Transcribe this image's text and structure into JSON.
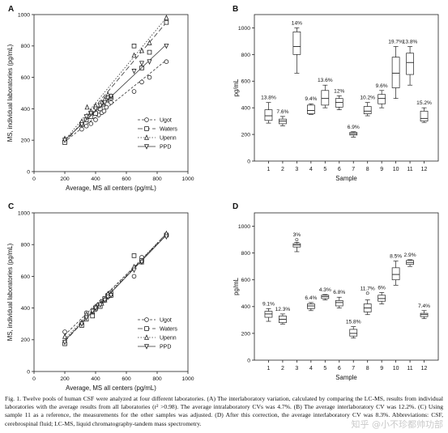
{
  "figure": {
    "caption": "Fig. 1.  Twelve pools of human CSF were analyzed at four different laboratories. (A) The interlaboratory variation, calculated by comparing the LC-MS, results from individual laboratories with the average results from all laboratories (r² >0.98). The average intralaboratory CVs was 4.7%. (B) The average interlaboratory CV was 12.2%. (C) Using sample 11 as a reference, the measurements for the other samples was adjusted. (D) After this correction, the average interlaboratory CV was 8.3%. Abbreviations: CSF, cerebrospinal fluid; LC-MS, liquid chromatography-tandem mass spectrometry.",
    "watermark": "知乎 @小不珍都帅功部"
  },
  "chart_data": [
    {
      "panel": "A",
      "type": "scatter",
      "xlabel": "Average, MS all centers (pg/mL)",
      "ylabel": "MS, individual laboratories (pg/mL)",
      "xlim": [
        0,
        1000
      ],
      "ylim": [
        0,
        1000
      ],
      "xticks": [
        "0",
        "200",
        "400",
        "600",
        "800",
        "1000"
      ],
      "yticks": [
        "0",
        "200",
        "400",
        "600",
        "800",
        "1000"
      ],
      "legend_position": "lower-right",
      "series": [
        {
          "name": "Ugot",
          "marker": "circle",
          "dash": "3,2",
          "points": [
            [
              200,
              195
            ],
            [
              310,
              270
            ],
            [
              340,
              290
            ],
            [
              370,
              305
            ],
            [
              400,
              330
            ],
            [
              420,
              360
            ],
            [
              440,
              375
            ],
            [
              455,
              385
            ],
            [
              470,
              410
            ],
            [
              500,
              440
            ],
            [
              650,
              510
            ],
            [
              700,
              570
            ],
            [
              750,
              600
            ],
            [
              860,
              700
            ]
          ],
          "fit": [
            [
              200,
              190
            ],
            [
              860,
              710
            ]
          ]
        },
        {
          "name": "Waters",
          "marker": "square",
          "dash": "6,3",
          "points": [
            [
              200,
              185
            ],
            [
              310,
              300
            ],
            [
              340,
              330
            ],
            [
              370,
              350
            ],
            [
              400,
              370
            ],
            [
              430,
              400
            ],
            [
              450,
              430
            ],
            [
              470,
              455
            ],
            [
              500,
              470
            ],
            [
              650,
              800
            ],
            [
              700,
              660
            ],
            [
              750,
              760
            ],
            [
              860,
              950
            ]
          ],
          "fit": [
            [
              200,
              185
            ],
            [
              860,
              950
            ]
          ]
        },
        {
          "name": "Upenn",
          "marker": "triangle-up",
          "dash": "1.5,2",
          "points": [
            [
              200,
              210
            ],
            [
              310,
              320
            ],
            [
              345,
              410
            ],
            [
              370,
              385
            ],
            [
              400,
              420
            ],
            [
              440,
              440
            ],
            [
              460,
              460
            ],
            [
              480,
              490
            ],
            [
              500,
              480
            ],
            [
              650,
              740
            ],
            [
              700,
              770
            ],
            [
              750,
              820
            ],
            [
              860,
              980
            ]
          ],
          "fit": [
            [
              200,
              200
            ],
            [
              860,
              980
            ]
          ]
        },
        {
          "name": "PPD",
          "marker": "triangle-down",
          "dash": "",
          "points": [
            [
              200,
              200
            ],
            [
              310,
              300
            ],
            [
              340,
              350
            ],
            [
              370,
              370
            ],
            [
              400,
              400
            ],
            [
              430,
              420
            ],
            [
              460,
              440
            ],
            [
              480,
              470
            ],
            [
              500,
              480
            ],
            [
              650,
              640
            ],
            [
              700,
              690
            ],
            [
              750,
              700
            ],
            [
              860,
              800
            ]
          ],
          "fit": [
            [
              200,
              200
            ],
            [
              860,
              810
            ]
          ]
        }
      ]
    },
    {
      "panel": "B",
      "type": "box",
      "xlabel": "Sample",
      "ylabel": "pg/mL",
      "ylim": [
        0,
        1100
      ],
      "yticks": [
        "0",
        "200",
        "400",
        "600",
        "800",
        "1000"
      ],
      "categories": [
        "1",
        "2",
        "3",
        "4",
        "5",
        "6",
        "7",
        "8",
        "9",
        "10",
        "11",
        "12"
      ],
      "boxes": [
        {
          "min": 285,
          "q1": 305,
          "med": 340,
          "q3": 385,
          "max": 440,
          "label": "13.8%"
        },
        {
          "min": 265,
          "q1": 280,
          "med": 300,
          "q3": 315,
          "max": 335,
          "label": "7.6%"
        },
        {
          "min": 660,
          "q1": 800,
          "med": 860,
          "q3": 970,
          "max": 1000,
          "label": "14%"
        },
        {
          "min": 350,
          "q1": 355,
          "med": 380,
          "q3": 420,
          "max": 430,
          "label": "9.4%"
        },
        {
          "min": 400,
          "q1": 420,
          "med": 470,
          "q3": 530,
          "max": 570,
          "label": "13.6%"
        },
        {
          "min": 385,
          "q1": 405,
          "med": 440,
          "q3": 470,
          "max": 490,
          "label": "12%"
        },
        {
          "min": 180,
          "q1": 195,
          "med": 205,
          "q3": 215,
          "max": 220,
          "label": "6.9%"
        },
        {
          "min": 340,
          "q1": 355,
          "med": 375,
          "q3": 410,
          "max": 440,
          "label": "10.2%"
        },
        {
          "min": 400,
          "q1": 430,
          "med": 470,
          "q3": 500,
          "max": 530,
          "label": "9.6%"
        },
        {
          "min": 470,
          "q1": 550,
          "med": 660,
          "q3": 780,
          "max": 860,
          "label": "19.7%"
        },
        {
          "min": 570,
          "q1": 650,
          "med": 740,
          "q3": 810,
          "max": 860,
          "label": "13.8%"
        },
        {
          "min": 290,
          "q1": 300,
          "med": 320,
          "q3": 375,
          "max": 400,
          "label": "15.2%"
        }
      ]
    },
    {
      "panel": "C",
      "type": "scatter",
      "xlabel": "Average, MS all centers (pg/mL)",
      "ylabel": "MS, individual laboratories (pg/mL)",
      "xlim": [
        0,
        1000
      ],
      "ylim": [
        0,
        1000
      ],
      "xticks": [
        "0",
        "200",
        "400",
        "600",
        "800",
        "1000"
      ],
      "yticks": [
        "0",
        "200",
        "400",
        "600",
        "800",
        "1000"
      ],
      "legend_position": "lower-right",
      "series": [
        {
          "name": "Ugot",
          "marker": "circle",
          "dash": "3,2",
          "points": [
            [
              200,
              250
            ],
            [
              310,
              300
            ],
            [
              340,
              370
            ],
            [
              380,
              360
            ],
            [
              400,
              390
            ],
            [
              420,
              420
            ],
            [
              440,
              440
            ],
            [
              460,
              460
            ],
            [
              480,
              470
            ],
            [
              500,
              500
            ],
            [
              650,
              600
            ],
            [
              700,
              720
            ],
            [
              860,
              860
            ]
          ],
          "fit": [
            [
              200,
              230
            ],
            [
              860,
              860
            ]
          ]
        },
        {
          "name": "Waters",
          "marker": "square",
          "dash": "6,3",
          "points": [
            [
              200,
              175
            ],
            [
              310,
              290
            ],
            [
              340,
              330
            ],
            [
              380,
              350
            ],
            [
              400,
              400
            ],
            [
              430,
              410
            ],
            [
              460,
              460
            ],
            [
              480,
              480
            ],
            [
              500,
              480
            ],
            [
              650,
              730
            ],
            [
              700,
              700
            ],
            [
              860,
              860
            ]
          ],
          "fit": [
            [
              200,
              190
            ],
            [
              860,
              870
            ]
          ]
        },
        {
          "name": "Upenn",
          "marker": "triangle-up",
          "dash": "1.5,2",
          "points": [
            [
              200,
              220
            ],
            [
              310,
              310
            ],
            [
              340,
              360
            ],
            [
              380,
              380
            ],
            [
              400,
              410
            ],
            [
              440,
              430
            ],
            [
              460,
              450
            ],
            [
              480,
              490
            ],
            [
              500,
              490
            ],
            [
              650,
              660
            ],
            [
              700,
              690
            ],
            [
              860,
              870
            ]
          ],
          "fit": [
            [
              200,
              205
            ],
            [
              860,
              870
            ]
          ]
        },
        {
          "name": "PPD",
          "marker": "triangle-down",
          "dash": "",
          "points": [
            [
              200,
              185
            ],
            [
              310,
              300
            ],
            [
              340,
              340
            ],
            [
              380,
              380
            ],
            [
              400,
              400
            ],
            [
              430,
              420
            ],
            [
              460,
              450
            ],
            [
              480,
              470
            ],
            [
              500,
              480
            ],
            [
              650,
              640
            ],
            [
              700,
              690
            ],
            [
              860,
              850
            ]
          ],
          "fit": [
            [
              200,
              195
            ],
            [
              860,
              860
            ]
          ]
        }
      ]
    },
    {
      "panel": "D",
      "type": "box",
      "xlabel": "Sample",
      "ylabel": "pg/mL",
      "ylim": [
        0,
        1100
      ],
      "yticks": [
        "0",
        "200",
        "400",
        "600",
        "800",
        "1000"
      ],
      "categories": [
        "1",
        "2",
        "3",
        "4",
        "5",
        "6",
        "7",
        "8",
        "9",
        "10",
        "11",
        "12"
      ],
      "boxes": [
        {
          "min": 290,
          "q1": 320,
          "med": 345,
          "q3": 365,
          "max": 385,
          "label": "9.1%"
        },
        {
          "min": 270,
          "q1": 280,
          "med": 305,
          "q3": 330,
          "max": 345,
          "label": "12.3%"
        },
        {
          "min": 810,
          "q1": 845,
          "med": 860,
          "q3": 870,
          "max": 880,
          "label": "3%",
          "outlier": 900
        },
        {
          "min": 370,
          "q1": 385,
          "med": 405,
          "q3": 420,
          "max": 430,
          "label": "6.4%"
        },
        {
          "min": 450,
          "q1": 460,
          "med": 475,
          "q3": 485,
          "max": 490,
          "label": "4.3%"
        },
        {
          "min": 390,
          "q1": 405,
          "med": 430,
          "q3": 445,
          "max": 470,
          "label": "6.8%"
        },
        {
          "min": 165,
          "q1": 180,
          "med": 200,
          "q3": 230,
          "max": 250,
          "label": "15.8%"
        },
        {
          "min": 340,
          "q1": 360,
          "med": 390,
          "q3": 420,
          "max": 450,
          "label": "11.7%",
          "outlier": 500
        },
        {
          "min": 420,
          "q1": 440,
          "med": 460,
          "q3": 485,
          "max": 505,
          "label": "6%"
        },
        {
          "min": 560,
          "q1": 600,
          "med": 640,
          "q3": 690,
          "max": 740,
          "label": "8.5%"
        },
        {
          "min": 700,
          "q1": 715,
          "med": 730,
          "q3": 745,
          "max": 750,
          "label": "2.9%"
        },
        {
          "min": 310,
          "q1": 325,
          "med": 340,
          "q3": 350,
          "max": 370,
          "label": "7.4%"
        }
      ]
    }
  ]
}
